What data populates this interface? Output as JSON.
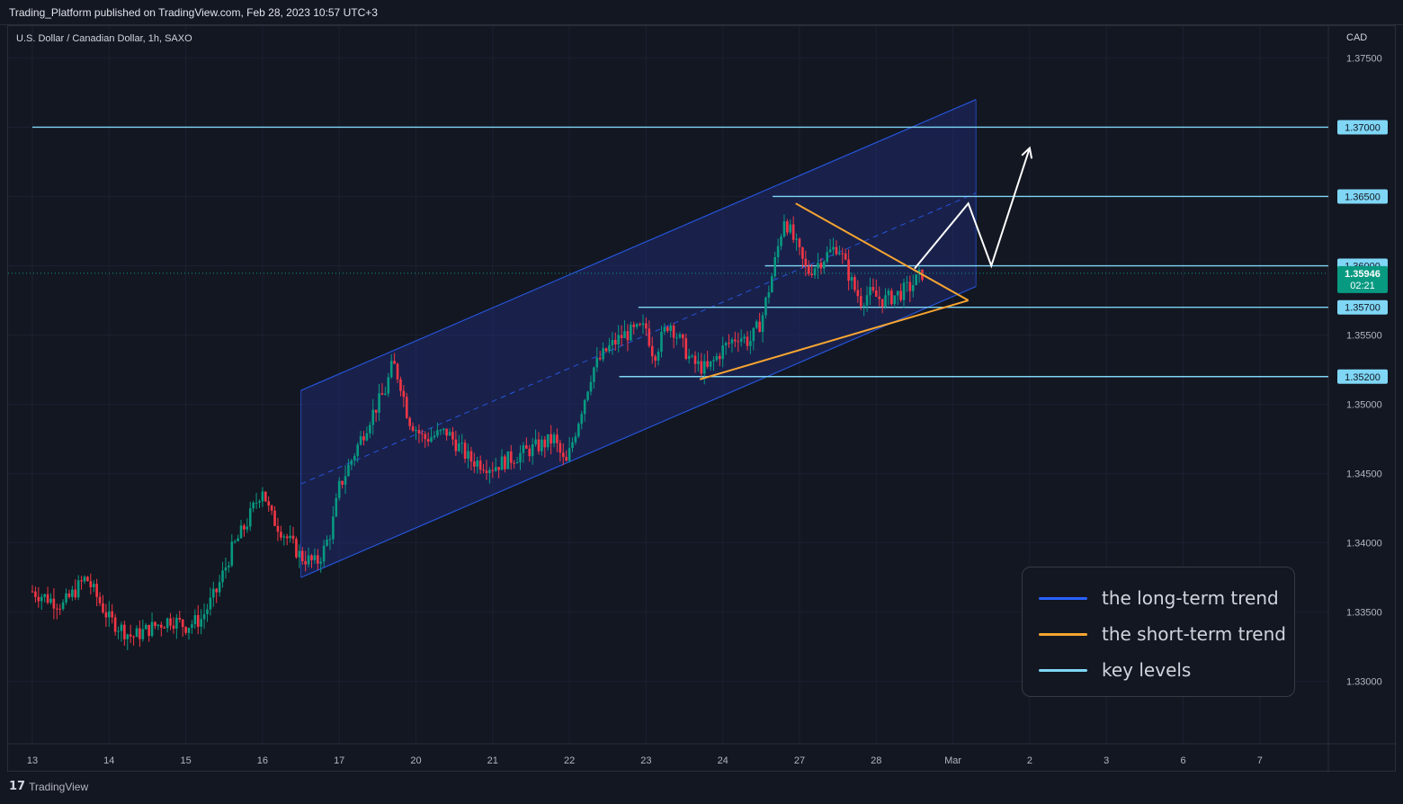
{
  "header": {
    "publisher": "Trading_Platform published on TradingView.com, Feb 28, 2023 10:57 UTC+3"
  },
  "chart_data": {
    "type": "candlestick",
    "title": "U.S. Dollar / Canadian Dollar, 1h, SAXO",
    "currency": "CAD",
    "x_tick_labels": [
      "13",
      "14",
      "15",
      "16",
      "17",
      "20",
      "21",
      "22",
      "23",
      "24",
      "27",
      "28",
      "Mar",
      "2",
      "3",
      "6",
      "7"
    ],
    "y_ticks": [
      1.33,
      1.335,
      1.34,
      1.345,
      1.35,
      1.355,
      1.36,
      1.365,
      1.37,
      1.375
    ],
    "y_tick_labels": [
      "1.33000",
      "1.33500",
      "1.34000",
      "1.34500",
      "1.35000",
      "1.35500",
      "1.36000",
      "1.36500",
      "1.37000",
      "1.37500"
    ],
    "ylim": [
      1.3255,
      1.3773
    ],
    "current_price": {
      "value": 1.35946,
      "label": "1.35946",
      "countdown": "02:21",
      "color": "#089981"
    },
    "key_levels": [
      {
        "value": 1.37,
        "label": "1.37000",
        "from_day": 0
      },
      {
        "value": 1.365,
        "label": "1.36500",
        "from_day": 9.65
      },
      {
        "value": 1.36,
        "label": "1.36000",
        "from_day": 9.55
      },
      {
        "value": 1.357,
        "label": "1.35700",
        "from_day": 7.9
      },
      {
        "value": 1.352,
        "label": "1.35200",
        "from_day": 7.65
      }
    ],
    "close_path": [
      [
        0,
        1.3365
      ],
      [
        0.4,
        1.3355
      ],
      [
        0.7,
        1.3375
      ],
      [
        1.0,
        1.3345
      ],
      [
        1.3,
        1.3332
      ],
      [
        1.6,
        1.334
      ],
      [
        1.8,
        1.3345
      ],
      [
        2.0,
        1.334
      ],
      [
        2.2,
        1.3345
      ],
      [
        2.4,
        1.3365
      ],
      [
        2.6,
        1.3395
      ],
      [
        2.8,
        1.3415
      ],
      [
        3.0,
        1.344
      ],
      [
        3.1,
        1.342
      ],
      [
        3.3,
        1.3405
      ],
      [
        3.5,
        1.339
      ],
      [
        3.7,
        1.3385
      ],
      [
        3.8,
        1.3395
      ],
      [
        3.9,
        1.341
      ],
      [
        4.0,
        1.344
      ],
      [
        4.2,
        1.3465
      ],
      [
        4.4,
        1.349
      ],
      [
        4.6,
        1.351
      ],
      [
        4.7,
        1.353
      ],
      [
        4.8,
        1.3515
      ],
      [
        4.9,
        1.349
      ],
      [
        5.1,
        1.3475
      ],
      [
        5.4,
        1.348
      ],
      [
        5.7,
        1.346
      ],
      [
        6.0,
        1.3455
      ],
      [
        6.4,
        1.3465
      ],
      [
        6.8,
        1.3475
      ],
      [
        6.95,
        1.3455
      ],
      [
        7.1,
        1.3485
      ],
      [
        7.3,
        1.3525
      ],
      [
        7.5,
        1.354
      ],
      [
        7.7,
        1.355
      ],
      [
        8.0,
        1.3555
      ],
      [
        8.1,
        1.3535
      ],
      [
        8.3,
        1.356
      ],
      [
        8.6,
        1.353
      ],
      [
        8.8,
        1.3525
      ],
      [
        9.0,
        1.354
      ],
      [
        9.2,
        1.355
      ],
      [
        9.35,
        1.3545
      ],
      [
        9.5,
        1.356
      ],
      [
        9.65,
        1.3595
      ],
      [
        9.8,
        1.3635
      ],
      [
        9.95,
        1.3615
      ],
      [
        10.1,
        1.3595
      ],
      [
        10.3,
        1.3605
      ],
      [
        10.5,
        1.3615
      ],
      [
        10.7,
        1.3585
      ],
      [
        10.8,
        1.3575
      ],
      [
        10.9,
        1.358
      ],
      [
        11.1,
        1.3575
      ],
      [
        11.3,
        1.358
      ],
      [
        11.45,
        1.3585
      ],
      [
        11.6,
        1.35946
      ]
    ],
    "long_term_channel": {
      "upper": [
        [
          3.5,
          1.351
        ],
        [
          12.3,
          1.372
        ]
      ],
      "lower": [
        [
          3.5,
          1.3375
        ],
        [
          12.3,
          1.3585
        ]
      ],
      "median": [
        [
          3.5,
          1.34425
        ],
        [
          12.3,
          1.36525
        ]
      ],
      "color": "#2962ff"
    },
    "short_term_triangle": {
      "upper": [
        [
          9.95,
          1.3645
        ],
        [
          12.2,
          1.3575
        ]
      ],
      "lower": [
        [
          8.7,
          1.3518
        ],
        [
          12.2,
          1.3575
        ]
      ],
      "color": "#f7a531"
    },
    "projection_path": [
      [
        11.5,
        1.3598
      ],
      [
        12.2,
        1.3645
      ],
      [
        12.5,
        1.36
      ],
      [
        13.0,
        1.3685
      ]
    ],
    "y_axis_label_x": "CAD"
  },
  "legend": {
    "items": [
      {
        "label": "the long-term trend",
        "color": "#2962ff"
      },
      {
        "label": "the short-term trend",
        "color": "#f7a531"
      },
      {
        "label": "key levels",
        "color": "#7fd6f5"
      }
    ]
  },
  "footer": {
    "brand": "TradingView",
    "brand_mark": "17"
  }
}
